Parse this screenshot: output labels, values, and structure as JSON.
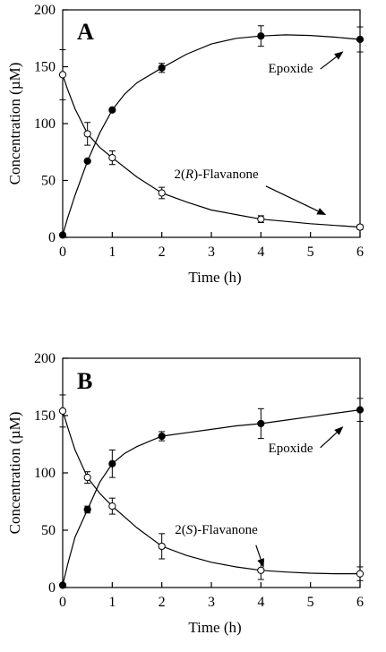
{
  "chart_data": [
    {
      "type": "scatter",
      "panel_label": "A",
      "xlabel": "Time (h)",
      "ylabel": "Concentration (µM)",
      "xlim": [
        0,
        6
      ],
      "ylim": [
        0,
        200
      ],
      "xticks": [
        0,
        1,
        2,
        3,
        4,
        5,
        6
      ],
      "yticks": [
        0,
        50,
        100,
        150,
        200
      ],
      "series": [
        {
          "name": "Epoxide",
          "marker": "filled-circle",
          "x": [
            0,
            0.5,
            1,
            2,
            4,
            6
          ],
          "y": [
            2,
            67,
            112,
            149,
            177,
            174
          ],
          "err": [
            0,
            0,
            0,
            4,
            9,
            11
          ],
          "curve_x": [
            0,
            0.1,
            0.25,
            0.5,
            0.75,
            1,
            1.25,
            1.5,
            2,
            2.5,
            3,
            3.5,
            4,
            4.5,
            5,
            5.5,
            6
          ],
          "curve_y": [
            2,
            17,
            37,
            67,
            92,
            112,
            126,
            136,
            149,
            161,
            170,
            175,
            177,
            178,
            177.5,
            176,
            174
          ],
          "label_at": [
            4.6,
            145
          ],
          "arrow_from": [
            5.2,
            148
          ],
          "arrow_to": [
            5.65,
            163
          ]
        },
        {
          "name": "2(R)-Flavanone",
          "marker": "open-circle",
          "x": [
            0,
            0.5,
            1,
            2,
            4,
            6
          ],
          "y": [
            143,
            91,
            70,
            39,
            16,
            9
          ],
          "err": [
            22,
            10,
            6,
            5,
            3,
            2
          ],
          "curve_x": [
            0,
            0.1,
            0.25,
            0.5,
            0.75,
            1,
            1.5,
            2,
            2.5,
            3,
            3.5,
            4,
            4.5,
            5,
            5.5,
            6
          ],
          "curve_y": [
            143,
            130,
            113,
            91,
            79,
            70,
            53,
            39,
            31,
            24,
            20,
            16,
            14,
            12,
            10.5,
            9
          ],
          "label_at": [
            3.1,
            52
          ],
          "arrow_from": [
            4.1,
            45
          ],
          "arrow_to": [
            5.3,
            20
          ]
        }
      ]
    },
    {
      "type": "scatter",
      "panel_label": "B",
      "xlabel": "Time (h)",
      "ylabel": "Concentration (µM)",
      "xlim": [
        0,
        6
      ],
      "ylim": [
        0,
        200
      ],
      "xticks": [
        0,
        1,
        2,
        3,
        4,
        5,
        6
      ],
      "yticks": [
        0,
        50,
        100,
        150,
        200
      ],
      "series": [
        {
          "name": "Epoxide",
          "marker": "filled-circle",
          "x": [
            0,
            0.5,
            1,
            2,
            4,
            6
          ],
          "y": [
            2,
            68,
            108,
            132,
            143,
            155
          ],
          "err": [
            0,
            3,
            12,
            4,
            13,
            10
          ],
          "curve_x": [
            0,
            0.1,
            0.25,
            0.5,
            0.75,
            1,
            1.25,
            1.5,
            2,
            2.5,
            3,
            3.5,
            4,
            4.5,
            5,
            5.5,
            6
          ],
          "curve_y": [
            2,
            20,
            44,
            68,
            92,
            108,
            117,
            123,
            132,
            135,
            138,
            141,
            143,
            146,
            149,
            152,
            155
          ],
          "label_at": [
            4.6,
            118
          ],
          "arrow_from": [
            5.2,
            122
          ],
          "arrow_to": [
            5.65,
            140
          ]
        },
        {
          "name": "2(S)-Flavanone",
          "marker": "open-circle",
          "x": [
            0,
            0.5,
            1,
            2,
            4,
            6
          ],
          "y": [
            154,
            96,
            71,
            36,
            15,
            12
          ],
          "err": [
            14,
            5,
            7,
            11,
            8,
            6
          ],
          "curve_x": [
            0,
            0.1,
            0.25,
            0.5,
            0.75,
            1,
            1.5,
            2,
            2.5,
            3,
            3.5,
            4,
            4.5,
            5,
            5.5,
            6
          ],
          "curve_y": [
            154,
            140,
            120,
            96,
            82,
            71,
            52,
            36,
            28,
            22,
            18,
            15,
            13.5,
            12.5,
            12,
            12
          ],
          "label_at": [
            3.1,
            47
          ],
          "arrow_from": [
            3.9,
            37
          ],
          "arrow_to": [
            4.05,
            18
          ]
        }
      ]
    }
  ]
}
